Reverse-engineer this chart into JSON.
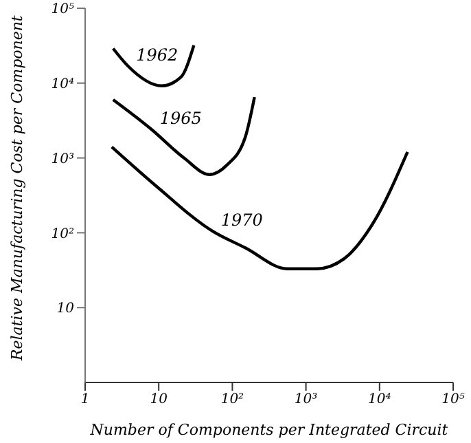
{
  "chart_data": {
    "type": "line",
    "xlabel": "Number of Components per Integrated Circuit",
    "ylabel": "Relative Manufacturing Cost per Component",
    "log": "xy",
    "xlim": [
      1,
      100000
    ],
    "ylim": [
      1,
      100000
    ],
    "xticks": [
      {
        "value": 1,
        "label": "1"
      },
      {
        "value": 10,
        "label": "10"
      },
      {
        "value": 100,
        "label": "10²"
      },
      {
        "value": 1000,
        "label": "10³"
      },
      {
        "value": 10000,
        "label": "10⁴"
      },
      {
        "value": 100000,
        "label": "10⁵"
      }
    ],
    "yticks": [
      {
        "value": 10,
        "label": "10"
      },
      {
        "value": 100,
        "label": "10²"
      },
      {
        "value": 1000,
        "label": "10³"
      },
      {
        "value": 10000,
        "label": "10⁴"
      },
      {
        "value": 100000,
        "label": "10⁵"
      }
    ],
    "marker": "none",
    "line_style": "solid",
    "series": [
      {
        "name": "1962",
        "color": "#000000",
        "x": [
          2.4,
          3.8,
          11,
          20,
          30
        ],
        "values": [
          29000,
          17000,
          9200,
          12000,
          32000
        ]
      },
      {
        "name": "1965",
        "color": "#000000",
        "x": [
          2.4,
          8,
          22,
          49,
          84,
          150,
          200
        ],
        "values": [
          6000,
          2400,
          1000,
          600,
          800,
          1900,
          6500
        ]
      },
      {
        "name": "1970",
        "color": "#000000",
        "x": [
          2.3,
          9,
          54,
          150,
          560,
          1400,
          3300,
          8000,
          24000
        ],
        "values": [
          1400,
          430,
          105,
          63,
          33,
          33,
          45,
          130,
          1200
        ]
      }
    ]
  }
}
